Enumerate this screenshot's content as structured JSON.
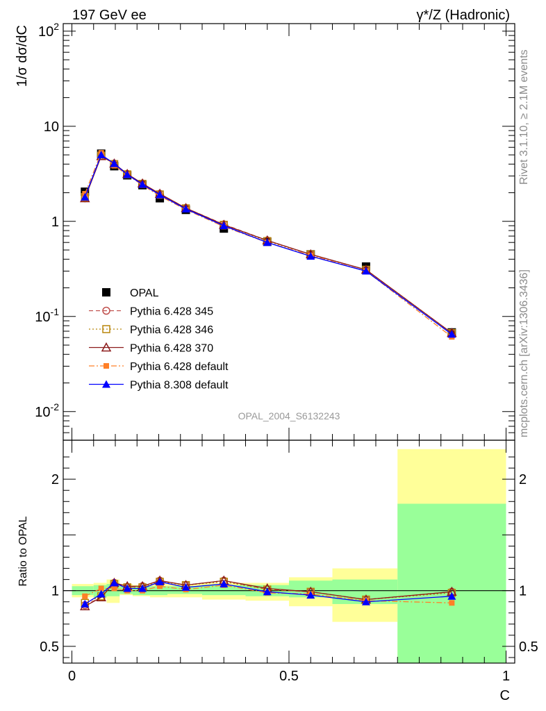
{
  "header": {
    "left": "197 GeV ee",
    "right": "γ*/Z (Hadronic)"
  },
  "side_labels": {
    "rivet": "Rivet 3.1.10, ≥ 2.1M events",
    "mcplots": "mcplots.cern.ch [arXiv:1306.3436]"
  },
  "watermark": "OPAL_2004_S6132243",
  "colors": {
    "data": "#000000",
    "p345": "#c0504d",
    "p346": "#b8860b",
    "p370": "#8b1a1a",
    "p6def": "#ff7f27",
    "p8def": "#0000ff",
    "band_inner": "#99ff99",
    "band_outer": "#ffff99"
  },
  "chart_data": [
    {
      "type": "scatter",
      "name": "main",
      "ylabel": "1/σ dσ/dC",
      "yscale": "log",
      "ylim": [
        0.005,
        120
      ],
      "xlim": [
        -0.02,
        1.02
      ],
      "ytick_labels": [
        "10^-2",
        "10^-1",
        "1",
        "10",
        "10^2"
      ],
      "x": [
        0.03,
        0.0675,
        0.0975,
        0.1275,
        0.1625,
        0.2025,
        0.2625,
        0.35,
        0.45,
        0.55,
        0.6775,
        0.875
      ],
      "series": [
        {
          "name": "OPAL",
          "key": "data",
          "marker": "square-filled",
          "values": [
            2.05,
            5.15,
            3.8,
            3.05,
            2.4,
            1.75,
            1.32,
            0.84,
            0.61,
            0.45,
            0.335,
            0.068
          ]
        },
        {
          "name": "Pythia 6.428 345",
          "key": "p345",
          "marker": "circle-open",
          "line": "dashed",
          "values": [
            1.75,
            4.9,
            4.05,
            3.15,
            2.5,
            1.95,
            1.38,
            0.93,
            0.63,
            0.45,
            0.31,
            0.067
          ]
        },
        {
          "name": "Pythia 6.428 346",
          "key": "p346",
          "marker": "square-open",
          "line": "dotted",
          "values": [
            1.8,
            4.9,
            4.0,
            3.12,
            2.48,
            1.92,
            1.37,
            0.92,
            0.62,
            0.45,
            0.31,
            0.067
          ]
        },
        {
          "name": "Pythia 6.428 370",
          "key": "p370",
          "marker": "triangle-open",
          "line": "solid",
          "values": [
            1.75,
            4.85,
            4.05,
            3.15,
            2.5,
            1.95,
            1.38,
            0.92,
            0.63,
            0.45,
            0.31,
            0.067
          ]
        },
        {
          "name": "Pythia 6.428 default",
          "key": "p6def",
          "marker": "square-small-filled",
          "line": "dashdot",
          "values": [
            1.95,
            5.25,
            3.85,
            3.1,
            2.4,
            1.85,
            1.33,
            0.88,
            0.6,
            0.44,
            0.3,
            0.061
          ]
        },
        {
          "name": "Pythia 8.308 default",
          "key": "p8def",
          "marker": "triangle-filled",
          "line": "solid",
          "values": [
            1.8,
            5.0,
            4.05,
            3.1,
            2.45,
            1.9,
            1.35,
            0.9,
            0.6,
            0.43,
            0.3,
            0.065
          ]
        }
      ]
    },
    {
      "type": "line",
      "name": "ratio",
      "ylabel": "Ratio to OPAL",
      "xlabel": "C",
      "ylim": [
        0.35,
        2.35
      ],
      "xlim": [
        -0.02,
        1.02
      ],
      "ytick_labels": [
        "0.5",
        "1",
        "2"
      ],
      "xtick_labels": [
        "0",
        "0.5",
        "1"
      ],
      "bins": [
        {
          "lo": 0.0,
          "hi": 0.05,
          "inner": [
            0.96,
            1.04
          ],
          "outer": [
            0.94,
            1.06
          ]
        },
        {
          "lo": 0.05,
          "hi": 0.08,
          "inner": [
            0.94,
            1.05
          ],
          "outer": [
            0.93,
            1.07
          ]
        },
        {
          "lo": 0.08,
          "hi": 0.11,
          "inner": [
            0.95,
            1.06
          ],
          "outer": [
            0.89,
            1.1
          ]
        },
        {
          "lo": 0.11,
          "hi": 0.14,
          "inner": [
            0.97,
            1.04
          ],
          "outer": [
            0.96,
            1.06
          ]
        },
        {
          "lo": 0.14,
          "hi": 0.18,
          "inner": [
            0.96,
            1.04
          ],
          "outer": [
            0.95,
            1.05
          ]
        },
        {
          "lo": 0.18,
          "hi": 0.22,
          "inner": [
            0.96,
            1.04
          ],
          "outer": [
            0.94,
            1.06
          ]
        },
        {
          "lo": 0.22,
          "hi": 0.3,
          "inner": [
            0.97,
            1.04
          ],
          "outer": [
            0.94,
            1.06
          ]
        },
        {
          "lo": 0.3,
          "hi": 0.4,
          "inner": [
            0.96,
            1.05
          ],
          "outer": [
            0.92,
            1.07
          ]
        },
        {
          "lo": 0.4,
          "hi": 0.5,
          "inner": [
            0.95,
            1.05
          ],
          "outer": [
            0.91,
            1.07
          ]
        },
        {
          "lo": 0.5,
          "hi": 0.6,
          "inner": [
            0.94,
            1.09
          ],
          "outer": [
            0.86,
            1.12
          ]
        },
        {
          "lo": 0.6,
          "hi": 0.75,
          "inner": [
            0.88,
            1.1
          ],
          "outer": [
            0.72,
            1.2
          ]
        },
        {
          "lo": 0.75,
          "hi": 1.0,
          "inner": [
            0.35,
            1.78
          ],
          "outer": [
            0.35,
            2.27
          ]
        }
      ],
      "series": [
        {
          "name": "Pythia 6.428 345",
          "key": "p345",
          "values": [
            0.87,
            0.94,
            1.07,
            1.03,
            1.04,
            1.09,
            1.05,
            1.09,
            1.01,
            0.99,
            0.92,
            0.99
          ]
        },
        {
          "name": "Pythia 6.428 346",
          "key": "p346",
          "values": [
            0.89,
            0.95,
            1.06,
            1.03,
            1.03,
            1.08,
            1.05,
            1.08,
            1.01,
            0.99,
            0.92,
            0.98
          ]
        },
        {
          "name": "Pythia 6.428 370",
          "key": "p370",
          "values": [
            0.86,
            0.94,
            1.07,
            1.04,
            1.04,
            1.09,
            1.05,
            1.09,
            1.02,
            0.99,
            0.92,
            0.99
          ]
        },
        {
          "name": "Pythia 6.428 default",
          "key": "p6def",
          "values": [
            0.95,
            1.02,
            1.02,
            1.0,
            1.0,
            1.04,
            1.01,
            1.05,
            0.98,
            0.97,
            0.91,
            0.89
          ]
        },
        {
          "name": "Pythia 8.308 default",
          "key": "p8def",
          "values": [
            0.88,
            0.97,
            1.07,
            1.02,
            1.02,
            1.08,
            1.03,
            1.06,
            0.99,
            0.96,
            0.9,
            0.95
          ]
        }
      ]
    }
  ]
}
